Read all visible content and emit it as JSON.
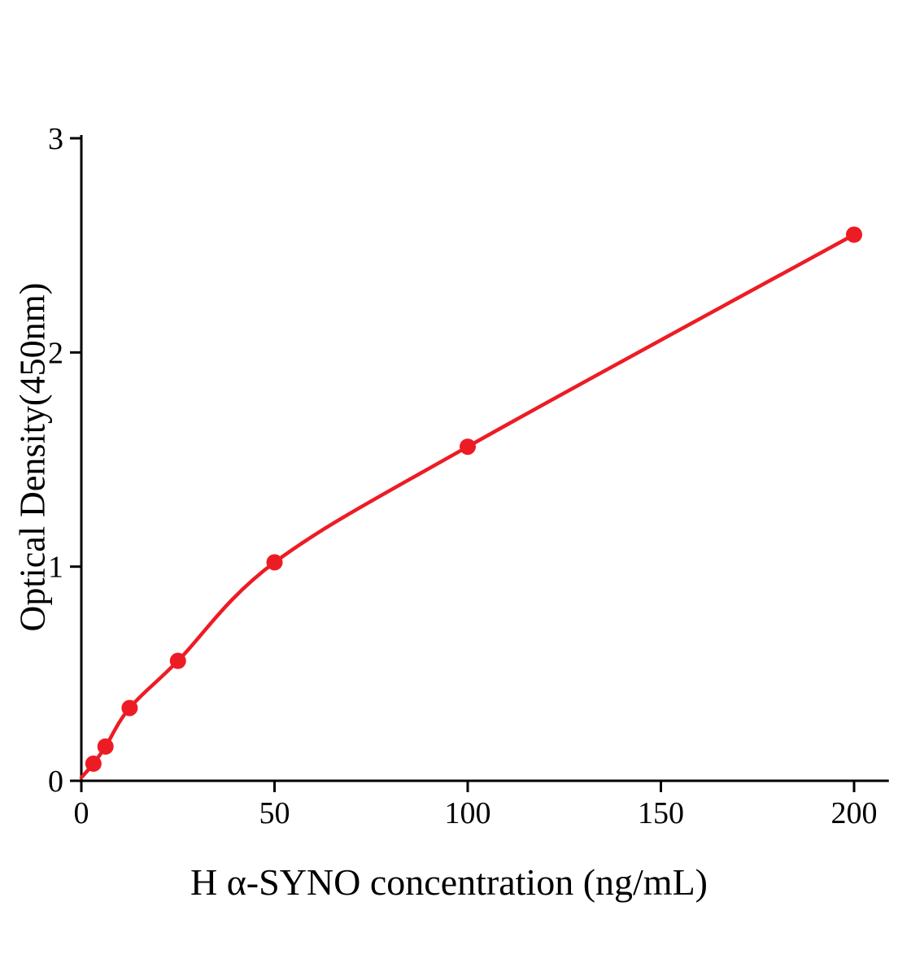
{
  "chart_data": {
    "type": "scatter",
    "title": "",
    "xlabel": "H α-SYNO concentration (ng/mL)",
    "ylabel": "Optical Density(450nm)",
    "x": [
      3.125,
      6.25,
      12.5,
      25,
      50,
      100,
      200
    ],
    "y": [
      0.08,
      0.16,
      0.34,
      0.56,
      1.02,
      1.56,
      2.55
    ],
    "fit": "smooth saturating standard-curve through points starting at origin",
    "xlim": [
      0,
      209
    ],
    "ylim": [
      0,
      3
    ],
    "xticks": [
      0,
      50,
      100,
      150,
      200
    ],
    "yticks": [
      0,
      1,
      2,
      3
    ],
    "grid": false,
    "legend": null,
    "marker_color": "#ed1c24",
    "line_color": "#ed1c24",
    "axis_color": "#000000"
  }
}
